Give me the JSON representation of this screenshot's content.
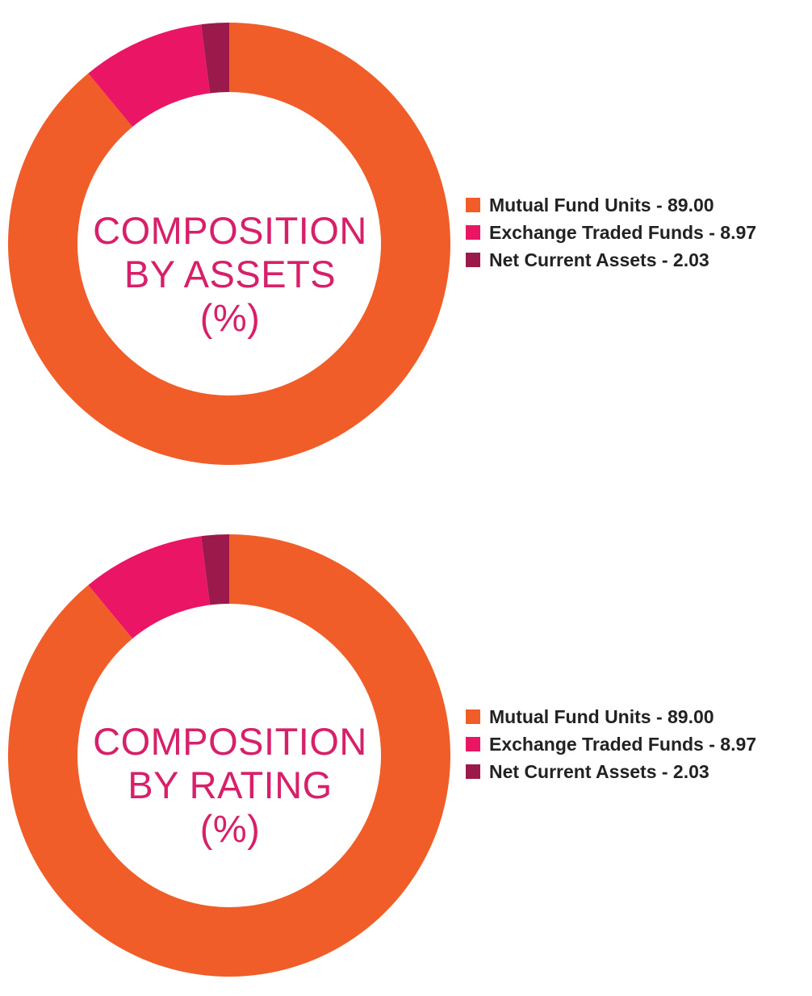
{
  "chart_data": [
    {
      "type": "pie",
      "variant": "donut",
      "title_lines": [
        "COMPOSITION",
        "BY ASSETS",
        "(%)"
      ],
      "categories": [
        "Mutual Fund Units",
        "Exchange Traded Funds",
        "Net Current Assets"
      ],
      "values": [
        89.0,
        8.97,
        2.03
      ],
      "value_labels": [
        "89.00",
        "8.97",
        "2.03"
      ],
      "colors": [
        "#f15d28",
        "#eb1566",
        "#9b1a4b"
      ],
      "legend_position": "right",
      "legend_labels": [
        "Mutual Fund Units - 89.00",
        "Exchange Traded Funds - 8.97",
        "Net Current Assets - 2.03"
      ]
    },
    {
      "type": "pie",
      "variant": "donut",
      "title_lines": [
        "COMPOSITION",
        "BY RATING",
        "(%)"
      ],
      "categories": [
        "Mutual Fund Units",
        "Exchange Traded Funds",
        "Net Current Assets"
      ],
      "values": [
        89.0,
        8.97,
        2.03
      ],
      "value_labels": [
        "89.00",
        "8.97",
        "2.03"
      ],
      "colors": [
        "#f15d28",
        "#eb1566",
        "#9b1a4b"
      ],
      "legend_position": "right",
      "legend_labels": [
        "Mutual Fund Units - 89.00",
        "Exchange Traded Funds - 8.97",
        "Net Current Assets - 2.03"
      ]
    }
  ],
  "title_color": "#d81f6a"
}
